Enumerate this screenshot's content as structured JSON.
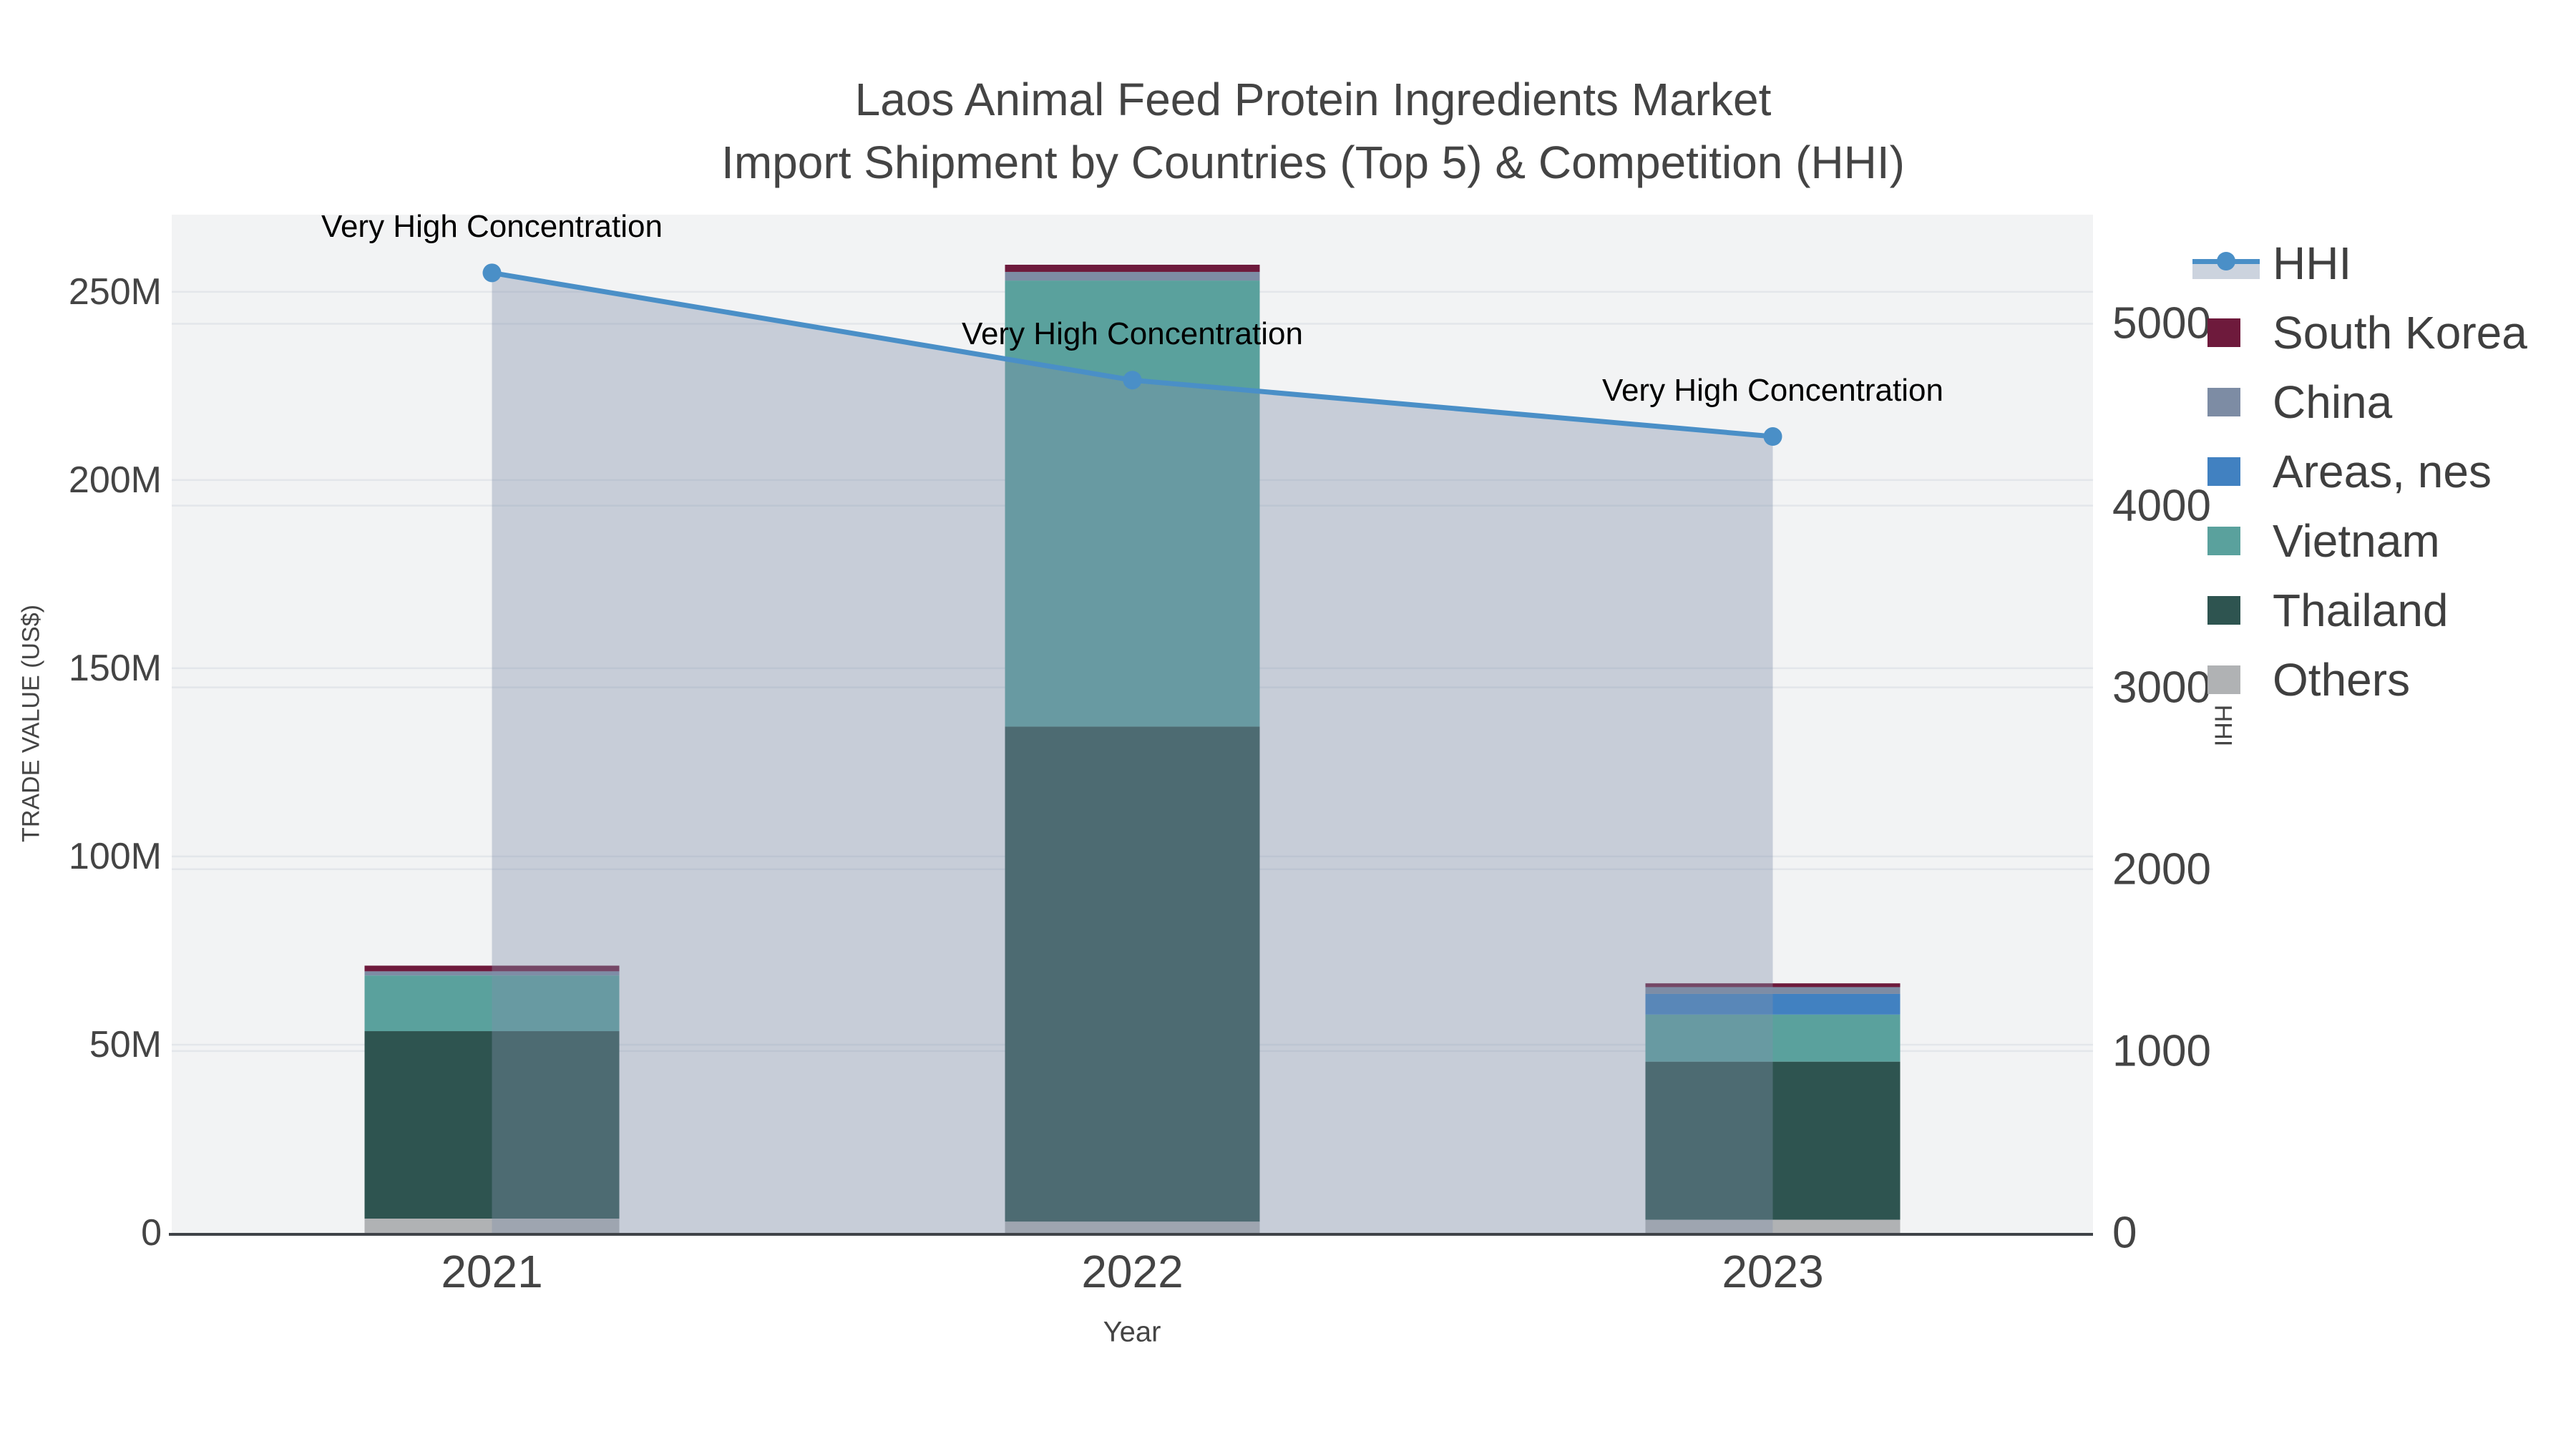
{
  "title": {
    "line1": "Laos Animal Feed Protein Ingredients Market",
    "line2": "Import Shipment by Countries (Top 5) & Competition (HHI)"
  },
  "axes": {
    "x": {
      "title": "Year",
      "tick_labels": [
        "2021",
        "2022",
        "2023"
      ]
    },
    "y_left": {
      "title": "TRADE VALUE (US$)",
      "tick_labels": [
        "0",
        "50M",
        "100M",
        "150M",
        "200M",
        "250M"
      ],
      "tick_values_millions": [
        0,
        50,
        100,
        150,
        200,
        250
      ]
    },
    "y_right": {
      "title": "HHI",
      "tick_labels": [
        "0",
        "1000",
        "2000",
        "3000",
        "4000",
        "5000"
      ],
      "tick_values": [
        0,
        1000,
        2000,
        3000,
        4000,
        5000
      ]
    }
  },
  "legend": {
    "items": [
      {
        "label": "HHI",
        "type": "line",
        "color": "#4a8fc7"
      },
      {
        "label": "South Korea",
        "type": "swatch",
        "color": "#6e1a3c"
      },
      {
        "label": "China",
        "type": "swatch",
        "color": "#7d8ca4"
      },
      {
        "label": "Areas, nes",
        "type": "swatch",
        "color": "#4181c1"
      },
      {
        "label": "Vietnam",
        "type": "swatch",
        "color": "#5aa19d"
      },
      {
        "label": "Thailand",
        "type": "swatch",
        "color": "#2e5450"
      },
      {
        "label": "Others",
        "type": "swatch",
        "color": "#b0b2b4"
      }
    ]
  },
  "chart_data": {
    "type": "combo_stacked_bar_line",
    "title": "Laos Animal Feed Protein Ingredients Market — Import Shipment by Countries (Top 5) & Competition (HHI)",
    "categories": [
      "2021",
      "2022",
      "2023"
    ],
    "xlabel": "Year",
    "ylabel_left": "TRADE VALUE (US$)",
    "ylabel_right": "HHI",
    "bar_unit": "US$ millions",
    "series": [
      {
        "name": "South Korea",
        "color": "#6e1a3c",
        "values": [
          1.5,
          1.9,
          1.0
        ]
      },
      {
        "name": "China",
        "color": "#7d8ca4",
        "values": [
          1.1,
          2.3,
          1.8
        ]
      },
      {
        "name": "Areas, nes",
        "color": "#4181c1",
        "values": [
          0.0,
          0.0,
          5.5
        ]
      },
      {
        "name": "Vietnam",
        "color": "#5aa19d",
        "values": [
          14.8,
          118.5,
          12.5
        ]
      },
      {
        "name": "Thailand",
        "color": "#2e5450",
        "values": [
          49.8,
          131.5,
          42.0
        ]
      },
      {
        "name": "Others",
        "color": "#b0b2b4",
        "values": [
          3.8,
          3.0,
          3.5
        ]
      }
    ],
    "stack_order_bottom_to_top": [
      "Others",
      "Thailand",
      "Vietnam",
      "Areas, nes",
      "China",
      "South Korea"
    ],
    "bar_totals_millions": [
      71.0,
      257.2,
      66.3
    ],
    "line": {
      "name": "HHI",
      "color": "#4a8fc7",
      "area_fill": "rgba(128,144,172,0.38)",
      "values": [
        5280,
        4690,
        4380
      ],
      "annotations": [
        "Very High Concentration",
        "Very High Concentration",
        "Very High Concentration"
      ]
    },
    "y_left_range_millions": [
      0,
      270.5
    ],
    "y_right_range": [
      0,
      5600
    ],
    "grid": true,
    "legend_position": "right",
    "plot_background": "#f2f3f4"
  }
}
